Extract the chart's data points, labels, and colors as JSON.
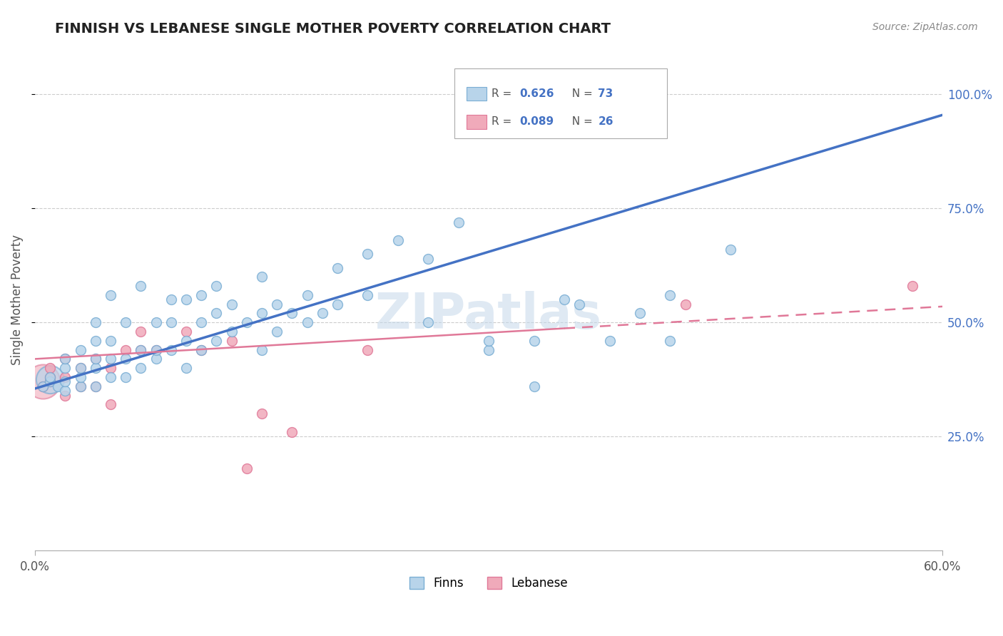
{
  "title": "FINNISH VS LEBANESE SINGLE MOTHER POVERTY CORRELATION CHART",
  "source": "Source: ZipAtlas.com",
  "ylabel_label": "Single Mother Poverty",
  "xmin": 0.0,
  "xmax": 0.6,
  "ymin": 0.0,
  "ymax": 1.1,
  "ytick_labels": [
    "25.0%",
    "50.0%",
    "75.0%",
    "100.0%"
  ],
  "ytick_vals": [
    0.25,
    0.5,
    0.75,
    1.0
  ],
  "legend_r_finn": "0.626",
  "legend_n_finn": "73",
  "legend_r_leb": "0.089",
  "legend_n_leb": "26",
  "finn_color": "#b8d4ea",
  "finn_edge": "#7aaed4",
  "leb_color": "#f0aaba",
  "leb_edge": "#e07898",
  "finn_line_color": "#4472c4",
  "leb_line_color": "#e07898",
  "watermark": "ZIPatlas",
  "finn_scatter": [
    [
      0.005,
      0.36
    ],
    [
      0.01,
      0.37
    ],
    [
      0.01,
      0.38
    ],
    [
      0.015,
      0.36
    ],
    [
      0.02,
      0.35
    ],
    [
      0.02,
      0.37
    ],
    [
      0.02,
      0.4
    ],
    [
      0.02,
      0.42
    ],
    [
      0.03,
      0.36
    ],
    [
      0.03,
      0.38
    ],
    [
      0.03,
      0.4
    ],
    [
      0.03,
      0.44
    ],
    [
      0.04,
      0.36
    ],
    [
      0.04,
      0.4
    ],
    [
      0.04,
      0.42
    ],
    [
      0.04,
      0.46
    ],
    [
      0.04,
      0.5
    ],
    [
      0.05,
      0.38
    ],
    [
      0.05,
      0.42
    ],
    [
      0.05,
      0.46
    ],
    [
      0.05,
      0.56
    ],
    [
      0.06,
      0.38
    ],
    [
      0.06,
      0.42
    ],
    [
      0.06,
      0.5
    ],
    [
      0.07,
      0.4
    ],
    [
      0.07,
      0.44
    ],
    [
      0.07,
      0.58
    ],
    [
      0.08,
      0.42
    ],
    [
      0.08,
      0.44
    ],
    [
      0.08,
      0.5
    ],
    [
      0.09,
      0.44
    ],
    [
      0.09,
      0.5
    ],
    [
      0.09,
      0.55
    ],
    [
      0.1,
      0.4
    ],
    [
      0.1,
      0.46
    ],
    [
      0.1,
      0.55
    ],
    [
      0.11,
      0.44
    ],
    [
      0.11,
      0.5
    ],
    [
      0.11,
      0.56
    ],
    [
      0.12,
      0.46
    ],
    [
      0.12,
      0.52
    ],
    [
      0.12,
      0.58
    ],
    [
      0.13,
      0.48
    ],
    [
      0.13,
      0.54
    ],
    [
      0.14,
      0.5
    ],
    [
      0.15,
      0.44
    ],
    [
      0.15,
      0.52
    ],
    [
      0.15,
      0.6
    ],
    [
      0.16,
      0.48
    ],
    [
      0.16,
      0.54
    ],
    [
      0.17,
      0.52
    ],
    [
      0.18,
      0.5
    ],
    [
      0.18,
      0.56
    ],
    [
      0.19,
      0.52
    ],
    [
      0.2,
      0.54
    ],
    [
      0.2,
      0.62
    ],
    [
      0.22,
      0.56
    ],
    [
      0.22,
      0.65
    ],
    [
      0.24,
      0.68
    ],
    [
      0.26,
      0.5
    ],
    [
      0.26,
      0.64
    ],
    [
      0.28,
      0.72
    ],
    [
      0.3,
      0.44
    ],
    [
      0.3,
      0.46
    ],
    [
      0.33,
      0.36
    ],
    [
      0.33,
      0.46
    ],
    [
      0.35,
      0.55
    ],
    [
      0.36,
      0.54
    ],
    [
      0.38,
      0.46
    ],
    [
      0.4,
      0.52
    ],
    [
      0.42,
      0.46
    ],
    [
      0.42,
      0.56
    ],
    [
      0.46,
      0.66
    ]
  ],
  "leb_scatter": [
    [
      0.005,
      0.36
    ],
    [
      0.01,
      0.37
    ],
    [
      0.01,
      0.38
    ],
    [
      0.01,
      0.4
    ],
    [
      0.02,
      0.34
    ],
    [
      0.02,
      0.38
    ],
    [
      0.02,
      0.42
    ],
    [
      0.03,
      0.36
    ],
    [
      0.03,
      0.4
    ],
    [
      0.04,
      0.36
    ],
    [
      0.04,
      0.42
    ],
    [
      0.05,
      0.32
    ],
    [
      0.05,
      0.4
    ],
    [
      0.06,
      0.44
    ],
    [
      0.07,
      0.48
    ],
    [
      0.07,
      0.44
    ],
    [
      0.08,
      0.44
    ],
    [
      0.1,
      0.48
    ],
    [
      0.11,
      0.44
    ],
    [
      0.13,
      0.46
    ],
    [
      0.14,
      0.18
    ],
    [
      0.15,
      0.3
    ],
    [
      0.17,
      0.26
    ],
    [
      0.22,
      0.44
    ],
    [
      0.43,
      0.54
    ],
    [
      0.58,
      0.58
    ]
  ],
  "finn_line": [
    [
      0.0,
      0.355
    ],
    [
      0.6,
      0.955
    ]
  ],
  "leb_line": [
    [
      0.0,
      0.42
    ],
    [
      0.6,
      0.535
    ]
  ],
  "leb_line_dashed_start": 0.35
}
